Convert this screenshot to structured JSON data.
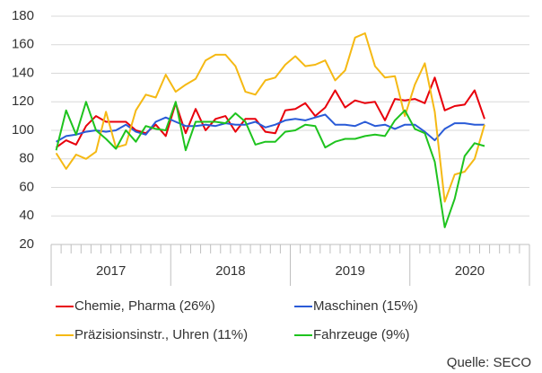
{
  "chart_data": {
    "type": "line",
    "categories": [
      null,
      null,
      null,
      null,
      null,
      null,
      null,
      null,
      null,
      null,
      null,
      null,
      null,
      null,
      null,
      null,
      null,
      null,
      null,
      null,
      null,
      null,
      null,
      null,
      null,
      null,
      null,
      null,
      null,
      null,
      null,
      null,
      null,
      null,
      null,
      null,
      null,
      null,
      null,
      null,
      null,
      null,
      null,
      null,
      null,
      null,
      null,
      null
    ],
    "groups": [
      "2017",
      "2018",
      "2019",
      "2020"
    ],
    "series": [
      {
        "name": "Chemie, Pharma (26%)",
        "color": "#e8000b",
        "values": [
          88,
          93,
          90,
          103,
          110,
          106,
          106,
          106,
          100,
          98,
          104,
          96,
          119,
          98,
          115,
          100,
          108,
          110,
          99,
          108,
          108,
          99,
          98,
          114,
          115,
          119,
          110,
          116,
          128,
          116,
          121,
          119,
          120,
          107,
          122,
          121,
          122,
          119,
          137,
          114,
          117,
          118,
          128,
          108,
          null,
          null,
          null,
          null
        ]
      },
      {
        "name": "Maschinen (15%)",
        "color": "#2a5bd7",
        "values": [
          92,
          96,
          97,
          99,
          100,
          99,
          100,
          104,
          99,
          97,
          106,
          109,
          106,
          103,
          103,
          104,
          103,
          105,
          104,
          104,
          106,
          102,
          104,
          107,
          108,
          107,
          109,
          111,
          104,
          104,
          103,
          106,
          103,
          104,
          101,
          104,
          104,
          99,
          93,
          101,
          105,
          105,
          104,
          104,
          null,
          null,
          null,
          null
        ]
      },
      {
        "name": "Präzisionsinstr., Uhren (11%)",
        "color": "#f5b914",
        "values": [
          84,
          73,
          83,
          80,
          85,
          113,
          88,
          90,
          114,
          125,
          123,
          139,
          127,
          132,
          136,
          149,
          153,
          153,
          145,
          127,
          125,
          135,
          137,
          146,
          152,
          145,
          146,
          149,
          135,
          142,
          165,
          168,
          145,
          137,
          138,
          110,
          132,
          147,
          113,
          50,
          69,
          71,
          80,
          104,
          null,
          null,
          null,
          null
        ]
      },
      {
        "name": "Fahrzeuge (9%)",
        "color": "#1ec31e",
        "values": [
          86,
          114,
          97,
          120,
          100,
          94,
          87,
          100,
          92,
          103,
          101,
          100,
          120,
          86,
          106,
          106,
          106,
          105,
          112,
          106,
          90,
          92,
          92,
          99,
          100,
          104,
          103,
          88,
          92,
          94,
          94,
          96,
          97,
          96,
          107,
          114,
          101,
          98,
          78,
          32,
          52,
          82,
          91,
          89,
          null,
          null,
          null,
          null
        ]
      }
    ],
    "ylim": [
      20,
      180
    ],
    "yticks": [
      20,
      40,
      60,
      80,
      100,
      120,
      140,
      160,
      180
    ],
    "grid": true,
    "source": "Quelle: SECO"
  }
}
